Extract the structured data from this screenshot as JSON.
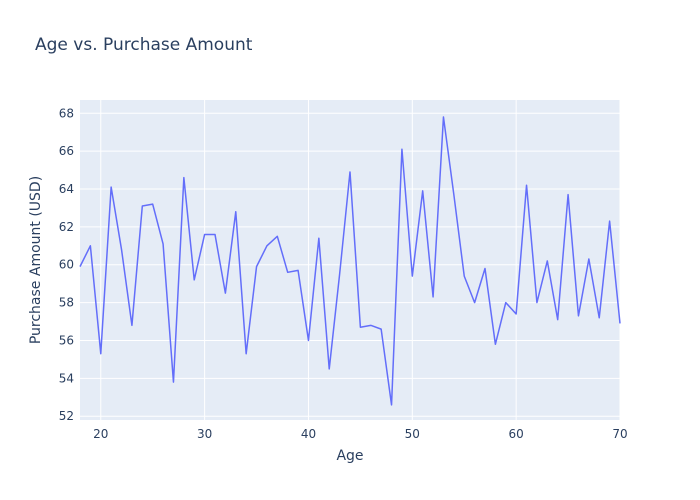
{
  "chart_data": {
    "type": "line",
    "title": "Age vs. Purchase Amount",
    "xlabel": "Age",
    "ylabel": "Purchase Amount (USD)",
    "xlim": [
      18,
      70
    ],
    "ylim": [
      51.8,
      68.7
    ],
    "xticks": [
      20,
      30,
      40,
      50,
      60,
      70
    ],
    "yticks": [
      52,
      54,
      56,
      58,
      60,
      62,
      64,
      66,
      68
    ],
    "grid": true,
    "legend": "none",
    "colors": {
      "plot_bg": "#e5ecf6",
      "grid": "#ffffff",
      "line": "#636efa",
      "text": "#2a3f5f"
    },
    "series": [
      {
        "x": [
          18,
          19,
          20,
          21,
          22,
          23,
          24,
          25,
          26,
          27,
          28,
          29,
          30,
          31,
          32,
          33,
          34,
          35,
          36,
          37,
          38,
          39,
          40,
          41,
          42,
          43,
          44,
          45,
          46,
          47,
          48,
          49,
          50,
          51,
          52,
          53,
          54,
          55,
          56,
          57,
          58,
          59,
          60,
          61,
          62,
          63,
          64,
          65,
          66,
          67,
          68,
          69,
          70
        ],
        "y": [
          59.9,
          61.0,
          55.3,
          64.1,
          60.8,
          56.8,
          63.1,
          63.2,
          61.1,
          53.8,
          64.6,
          59.2,
          61.6,
          61.6,
          58.5,
          62.8,
          55.3,
          59.9,
          61.0,
          61.5,
          59.6,
          59.7,
          56.0,
          61.4,
          54.5,
          59.5,
          64.9,
          56.7,
          56.8,
          56.6,
          52.6,
          66.1,
          59.4,
          63.9,
          58.3,
          67.8,
          63.7,
          59.4,
          58.0,
          59.8,
          55.8,
          58.0,
          57.4,
          64.2,
          58.0,
          60.2,
          57.1,
          63.7,
          57.3,
          60.3,
          57.2,
          62.3,
          56.9
        ]
      }
    ]
  }
}
